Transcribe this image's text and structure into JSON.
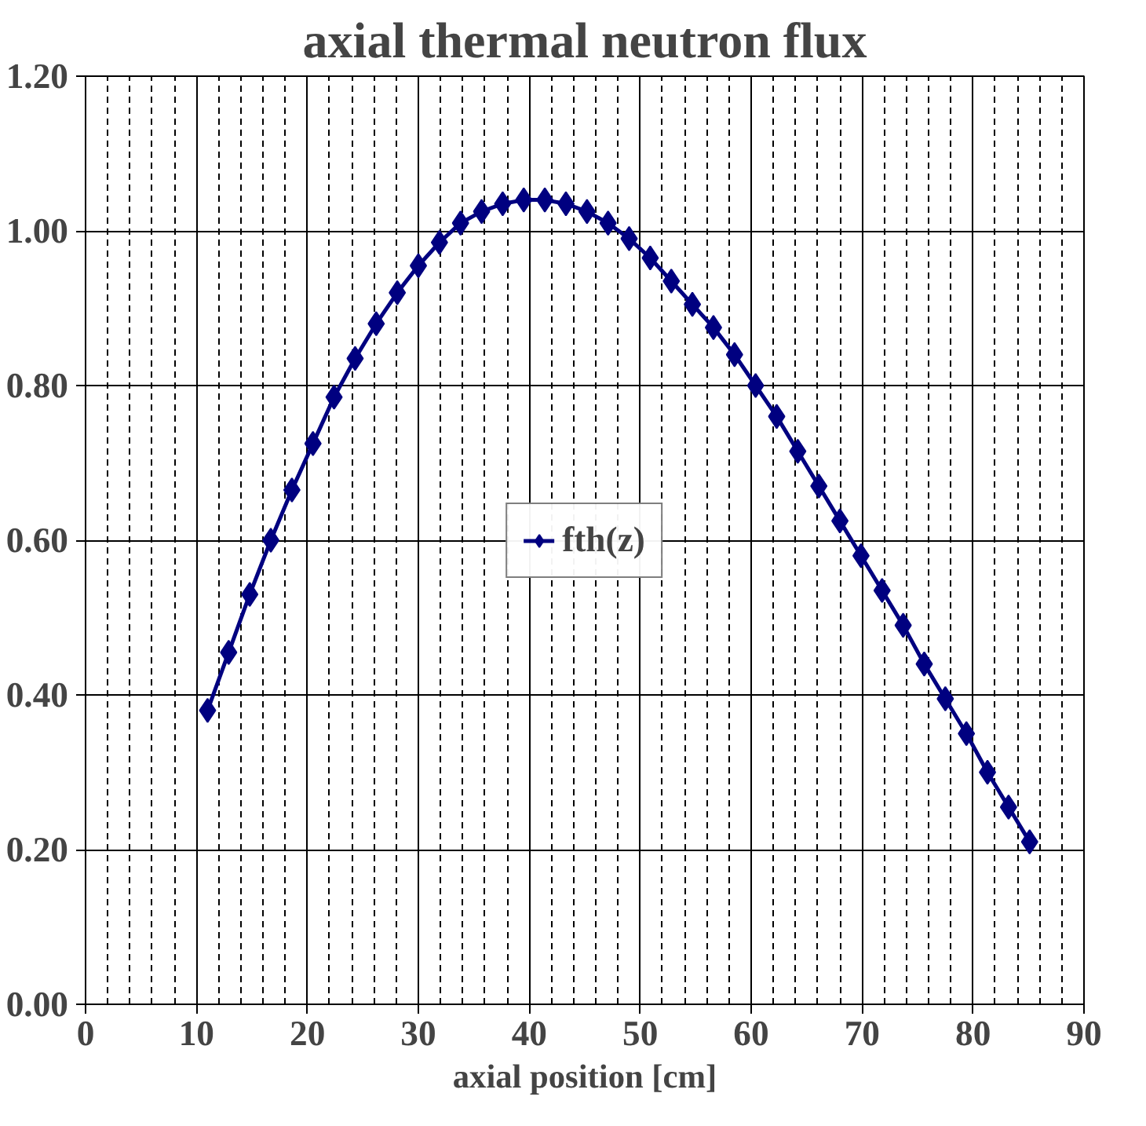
{
  "chart_data": {
    "type": "line",
    "title": "axial thermal neutron flux",
    "xlabel": "axial position [cm]",
    "x": [
      11,
      12.9,
      14.8,
      16.7,
      18.6,
      20.5,
      22.4,
      24.3,
      26.2,
      28.1,
      30,
      31.9,
      33.8,
      35.7,
      37.6,
      39.5,
      41.4,
      43.3,
      45.2,
      47.1,
      49,
      50.9,
      52.8,
      54.7,
      56.6,
      58.5,
      60.4,
      62.3,
      64.2,
      66.1,
      68,
      69.9,
      71.8,
      73.7,
      75.6,
      77.5,
      79.4,
      81.3,
      83.2,
      85.1
    ],
    "series": [
      {
        "name": "fth(z)",
        "color": "#000080",
        "values": [
          0.38,
          0.455,
          0.53,
          0.6,
          0.665,
          0.725,
          0.785,
          0.835,
          0.88,
          0.92,
          0.955,
          0.985,
          1.01,
          1.025,
          1.035,
          1.04,
          1.04,
          1.035,
          1.025,
          1.01,
          0.99,
          0.965,
          0.935,
          0.905,
          0.875,
          0.84,
          0.8,
          0.76,
          0.715,
          0.67,
          0.625,
          0.58,
          0.535,
          0.49,
          0.44,
          0.395,
          0.35,
          0.3,
          0.255,
          0.21
        ]
      }
    ],
    "xlim": [
      0,
      90
    ],
    "xticks": [
      0,
      10,
      20,
      30,
      40,
      50,
      60,
      70,
      80,
      90
    ],
    "ylim": [
      0,
      1.2
    ],
    "yticks": [
      {
        "value": 0,
        "label": "0.00"
      },
      {
        "value": 0.2,
        "label": "0.20"
      },
      {
        "value": 0.4,
        "label": "0.40"
      },
      {
        "value": 0.6,
        "label": "0.60"
      },
      {
        "value": 0.8,
        "label": "0.80"
      },
      {
        "value": 1.0,
        "label": "1.00"
      },
      {
        "value": 1.2,
        "label": "1.20"
      }
    ],
    "grid": true,
    "legend": "center",
    "marker": "diamond",
    "line_style": "solid"
  }
}
